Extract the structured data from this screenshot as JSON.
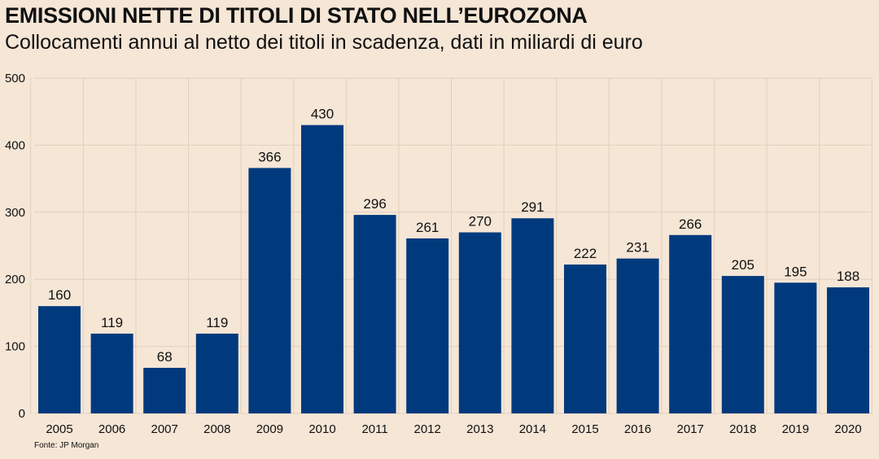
{
  "title": "EMISSIONI NETTE DI TITOLI DI STATO NELL’EUROZONA",
  "subtitle": "Collocamenti annui al netto dei titoli in scadenza, dati in miliardi di euro",
  "source": "Fonte: JP Morgan",
  "colors": {
    "background": "#f5e6d6",
    "bar": "#003a7d",
    "grid": "#e3cfbd",
    "text": "#111111"
  },
  "chart_data": {
    "type": "bar",
    "title": "EMISSIONI NETTE DI TITOLI DI STATO NELL’EUROZONA",
    "subtitle": "Collocamenti annui al netto dei titoli in scadenza, dati in miliardi di euro",
    "categories": [
      "2005",
      "2006",
      "2007",
      "2008",
      "2009",
      "2010",
      "2011",
      "2012",
      "2013",
      "2014",
      "2015",
      "2016",
      "2017",
      "2018",
      "2019",
      "2020"
    ],
    "values": [
      160,
      119,
      68,
      119,
      366,
      430,
      296,
      261,
      270,
      291,
      222,
      231,
      266,
      205,
      195,
      188
    ],
    "ylim": [
      0,
      500
    ],
    "yticks": [
      0,
      100,
      200,
      300,
      400,
      500
    ],
    "xlabel": "",
    "ylabel": "",
    "grid": true,
    "data_labels": true,
    "legend": "none"
  }
}
